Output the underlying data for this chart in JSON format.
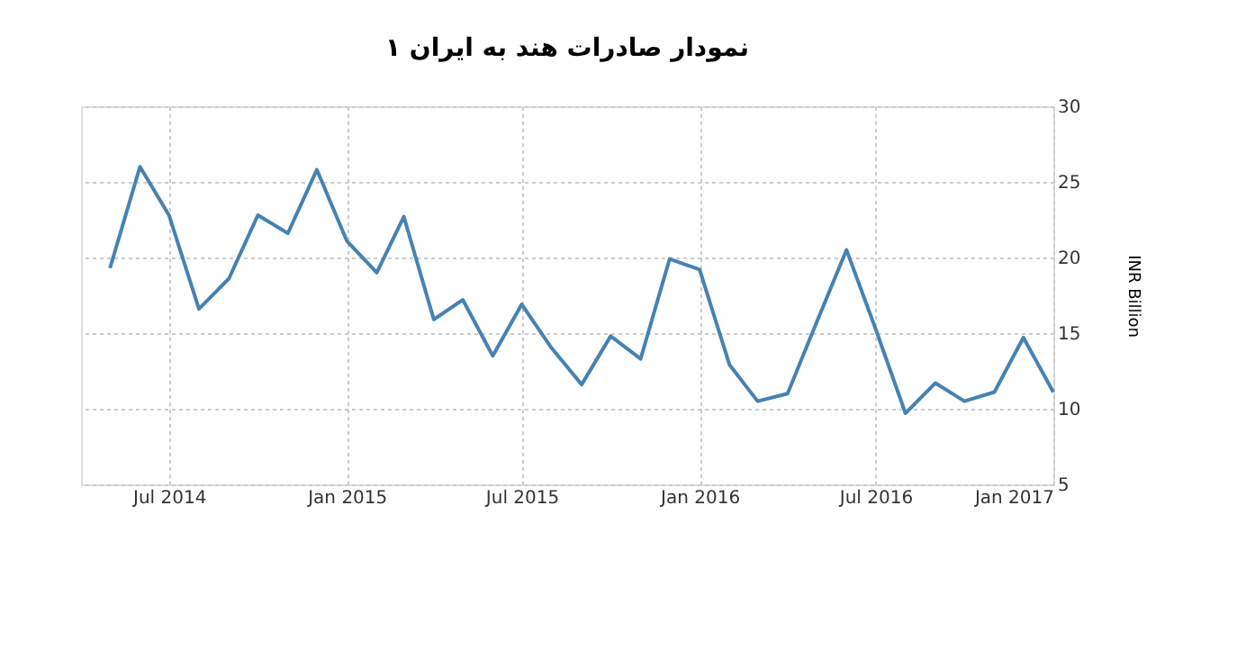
{
  "chart_data": {
    "type": "line",
    "title": "نمودار صادرات هند به ایران ۱",
    "ylabel": "INR Billion",
    "x": [
      "2014-05",
      "2014-06",
      "2014-07",
      "2014-08",
      "2014-09",
      "2014-10",
      "2014-11",
      "2014-12",
      "2015-01",
      "2015-02",
      "2015-03",
      "2015-04",
      "2015-05",
      "2015-06",
      "2015-07",
      "2015-08",
      "2015-09",
      "2015-10",
      "2015-11",
      "2015-12",
      "2016-01",
      "2016-02",
      "2016-03",
      "2016-04",
      "2016-05",
      "2016-06",
      "2016-07",
      "2016-08",
      "2016-09",
      "2016-10",
      "2016-11",
      "2016-12",
      "2017-01"
    ],
    "series": [
      {
        "color": "#4682b4",
        "values": [
          19.3,
          26.0,
          22.8,
          16.6,
          18.6,
          22.8,
          21.6,
          25.8,
          21.1,
          19.0,
          22.7,
          15.9,
          17.2,
          13.5,
          16.9,
          14.0,
          11.6,
          14.8,
          13.3,
          19.9,
          19.2,
          12.9,
          10.5,
          11.0,
          15.7,
          20.5,
          15.3,
          9.7,
          11.7,
          10.5,
          11.1,
          14.7,
          11.1
        ]
      }
    ],
    "xlim": [
      "2014-04",
      "2017-01"
    ],
    "xticks": [
      {
        "value": "2014-07",
        "label": "Jul 2014"
      },
      {
        "value": "2015-01",
        "label": "Jan 2015"
      },
      {
        "value": "2015-07",
        "label": "Jul 2015"
      },
      {
        "value": "2016-01",
        "label": "Jan 2016"
      },
      {
        "value": "2016-07",
        "label": "Jul 2016"
      },
      {
        "value": "2017-01",
        "label": "Jan 2017"
      }
    ],
    "ylim": [
      5,
      30
    ],
    "yticks": [
      5,
      10,
      15,
      20,
      25,
      30
    ],
    "grid": true,
    "marker": "none",
    "line_style": "solid"
  }
}
